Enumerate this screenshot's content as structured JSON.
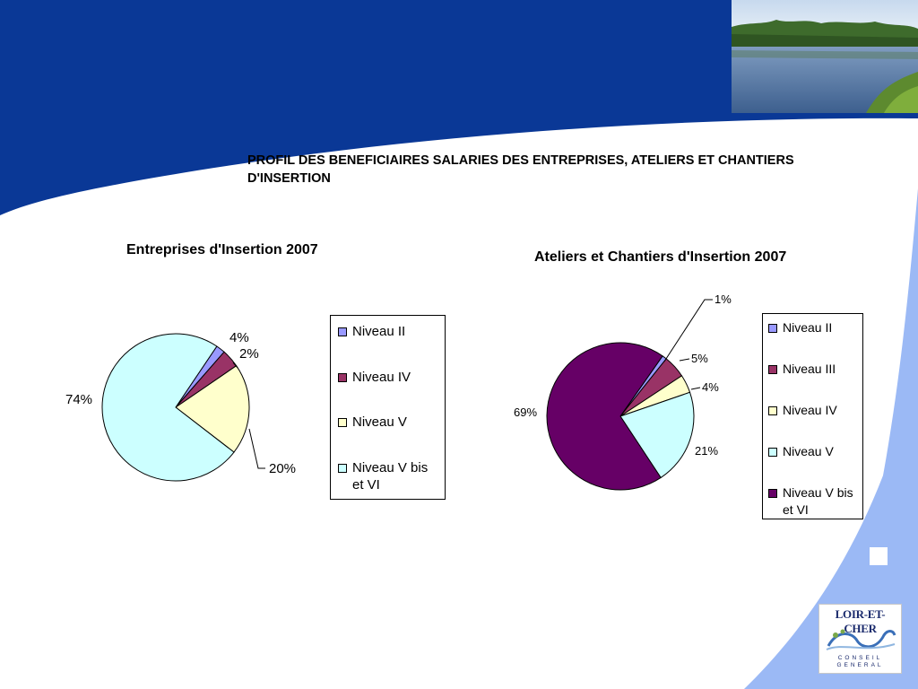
{
  "slide": {
    "title": "PROFIL DES BENEFICIAIRES SALARIES DES ENTREPRISES, ATELIERS ET CHANTIERS D'INSERTION"
  },
  "colors": {
    "niveau_ii": "#9999ff",
    "niveau_iii": "#993366",
    "niveau_iv": "#ffffcc",
    "niveau_v": "#ccffff",
    "niveau_v_bis_vi": "#660066",
    "background_blue": "#0a3896",
    "light_blue": "#9bb9f5"
  },
  "logo": {
    "name": "LOIR-ET-CHER",
    "subtitle_line1": "CONSEIL",
    "subtitle_line2": "GENERAL"
  },
  "chart_data": [
    {
      "type": "pie",
      "title": "Entreprises d'Insertion 2007",
      "categories": [
        "Niveau II",
        "Niveau IV",
        "Niveau V",
        "Niveau V bis et VI"
      ],
      "values": [
        2,
        4,
        20,
        74
      ],
      "data_labels": [
        "2%",
        "4%",
        "20%",
        "74%"
      ],
      "colors": [
        "#9999ff",
        "#993366",
        "#ffffcc",
        "#ccffff"
      ],
      "legend": {
        "placement": "right",
        "entries": [
          "Niveau II",
          "Niveau IV",
          "Niveau V",
          "Niveau V bis et VI"
        ]
      }
    },
    {
      "type": "pie",
      "title": "Ateliers et Chantiers d'Insertion 2007",
      "categories": [
        "Niveau II",
        "Niveau III",
        "Niveau IV",
        "Niveau V",
        "Niveau V bis et VI"
      ],
      "values": [
        1,
        5,
        4,
        21,
        69
      ],
      "data_labels": [
        "1%",
        "5%",
        "4%",
        "21%",
        "69%"
      ],
      "colors": [
        "#9999ff",
        "#993366",
        "#ffffcc",
        "#ccffff",
        "#660066"
      ],
      "legend": {
        "placement": "right",
        "entries": [
          "Niveau II",
          "Niveau III",
          "Niveau IV",
          "Niveau V",
          "Niveau V bis et VI"
        ]
      }
    }
  ]
}
